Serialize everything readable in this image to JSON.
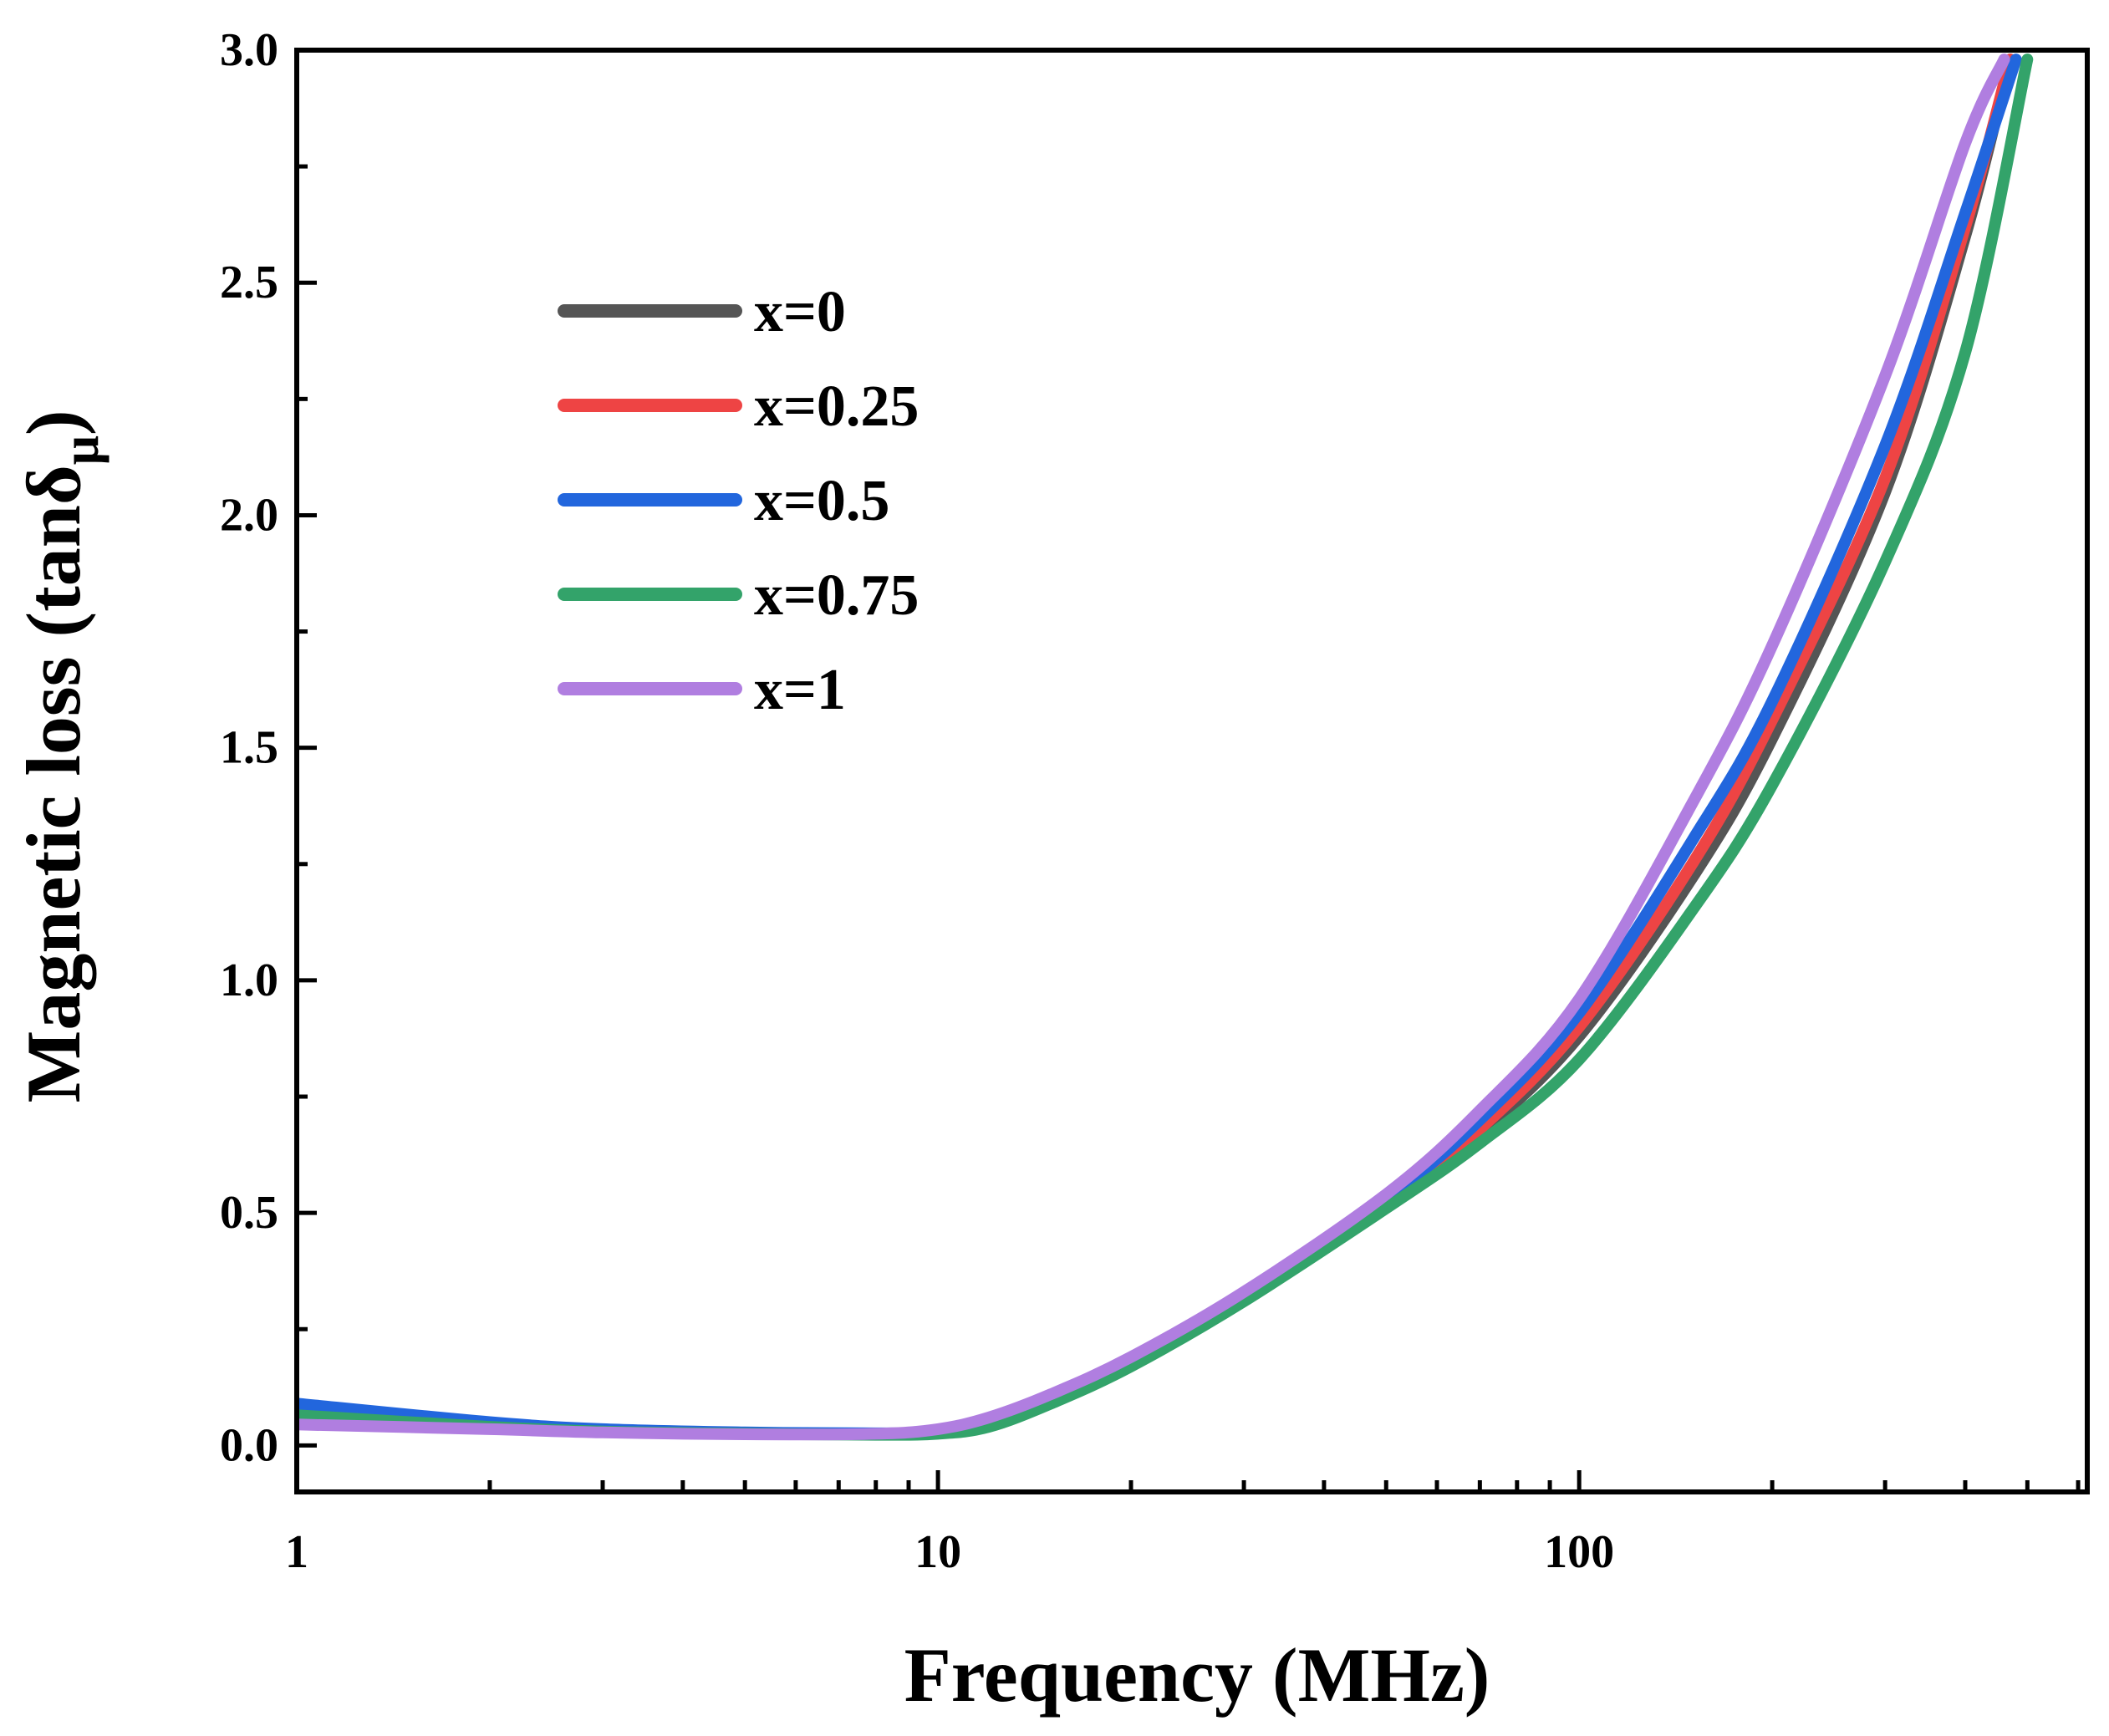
{
  "chart_data": {
    "type": "line",
    "title": "",
    "xlabel": "Frequency (MHz)",
    "ylabel_main": "Magnetic loss (tanδ",
    "ylabel_sub": "μ",
    "ylabel_close": ")",
    "xscale": "log",
    "xlim": [
      1,
      620
    ],
    "ylim": [
      -0.1,
      3.0
    ],
    "xticks": [
      1,
      10,
      100
    ],
    "xtick_labels": [
      "1",
      "10",
      "100"
    ],
    "yticks": [
      0.0,
      0.5,
      1.0,
      1.5,
      2.0,
      2.5,
      3.0
    ],
    "ytick_labels": [
      "0.0",
      "0.5",
      "1.0",
      "1.5",
      "2.0",
      "2.5",
      "3.0"
    ],
    "legend_position": "upper-left",
    "grid": false,
    "series": [
      {
        "name": "x=0",
        "color": "#555555",
        "x": [
          1,
          2,
          3,
          5,
          8,
          10,
          12,
          15,
          20,
          30,
          50,
          70,
          100,
          150,
          200,
          300,
          400,
          470
        ],
        "y": [
          0.06,
          0.04,
          0.03,
          0.025,
          0.025,
          0.03,
          0.05,
          0.1,
          0.18,
          0.32,
          0.52,
          0.67,
          0.88,
          1.22,
          1.52,
          2.05,
          2.6,
          2.98
        ]
      },
      {
        "name": "x=0.25",
        "color": "#ee4444",
        "x": [
          1,
          2,
          3,
          5,
          8,
          10,
          12,
          15,
          20,
          30,
          50,
          70,
          100,
          150,
          200,
          300,
          400,
          470
        ],
        "y": [
          0.07,
          0.045,
          0.032,
          0.025,
          0.025,
          0.03,
          0.05,
          0.1,
          0.18,
          0.32,
          0.52,
          0.68,
          0.9,
          1.25,
          1.56,
          2.08,
          2.62,
          2.98
        ]
      },
      {
        "name": "x=0.5",
        "color": "#2266dd",
        "x": [
          1,
          2,
          3,
          5,
          8,
          10,
          12,
          15,
          20,
          30,
          50,
          70,
          100,
          150,
          200,
          300,
          400,
          480
        ],
        "y": [
          0.09,
          0.05,
          0.035,
          0.028,
          0.026,
          0.03,
          0.05,
          0.1,
          0.18,
          0.32,
          0.53,
          0.7,
          0.93,
          1.3,
          1.6,
          2.15,
          2.65,
          2.98
        ]
      },
      {
        "name": "x=0.75",
        "color": "#33a36a",
        "x": [
          1,
          2,
          3,
          5,
          8,
          10,
          12,
          15,
          20,
          30,
          50,
          70,
          100,
          150,
          200,
          300,
          400,
          500
        ],
        "y": [
          0.065,
          0.04,
          0.03,
          0.025,
          0.023,
          0.025,
          0.04,
          0.09,
          0.17,
          0.31,
          0.51,
          0.65,
          0.83,
          1.15,
          1.42,
          1.9,
          2.35,
          2.98
        ]
      },
      {
        "name": "x=1",
        "color": "#b07ee0",
        "x": [
          1,
          2,
          3,
          5,
          8,
          10,
          12,
          15,
          20,
          30,
          50,
          70,
          100,
          150,
          200,
          300,
          400,
          460
        ],
        "y": [
          0.045,
          0.035,
          0.028,
          0.024,
          0.025,
          0.035,
          0.06,
          0.11,
          0.19,
          0.33,
          0.54,
          0.72,
          0.96,
          1.38,
          1.72,
          2.3,
          2.8,
          2.98
        ]
      }
    ]
  }
}
